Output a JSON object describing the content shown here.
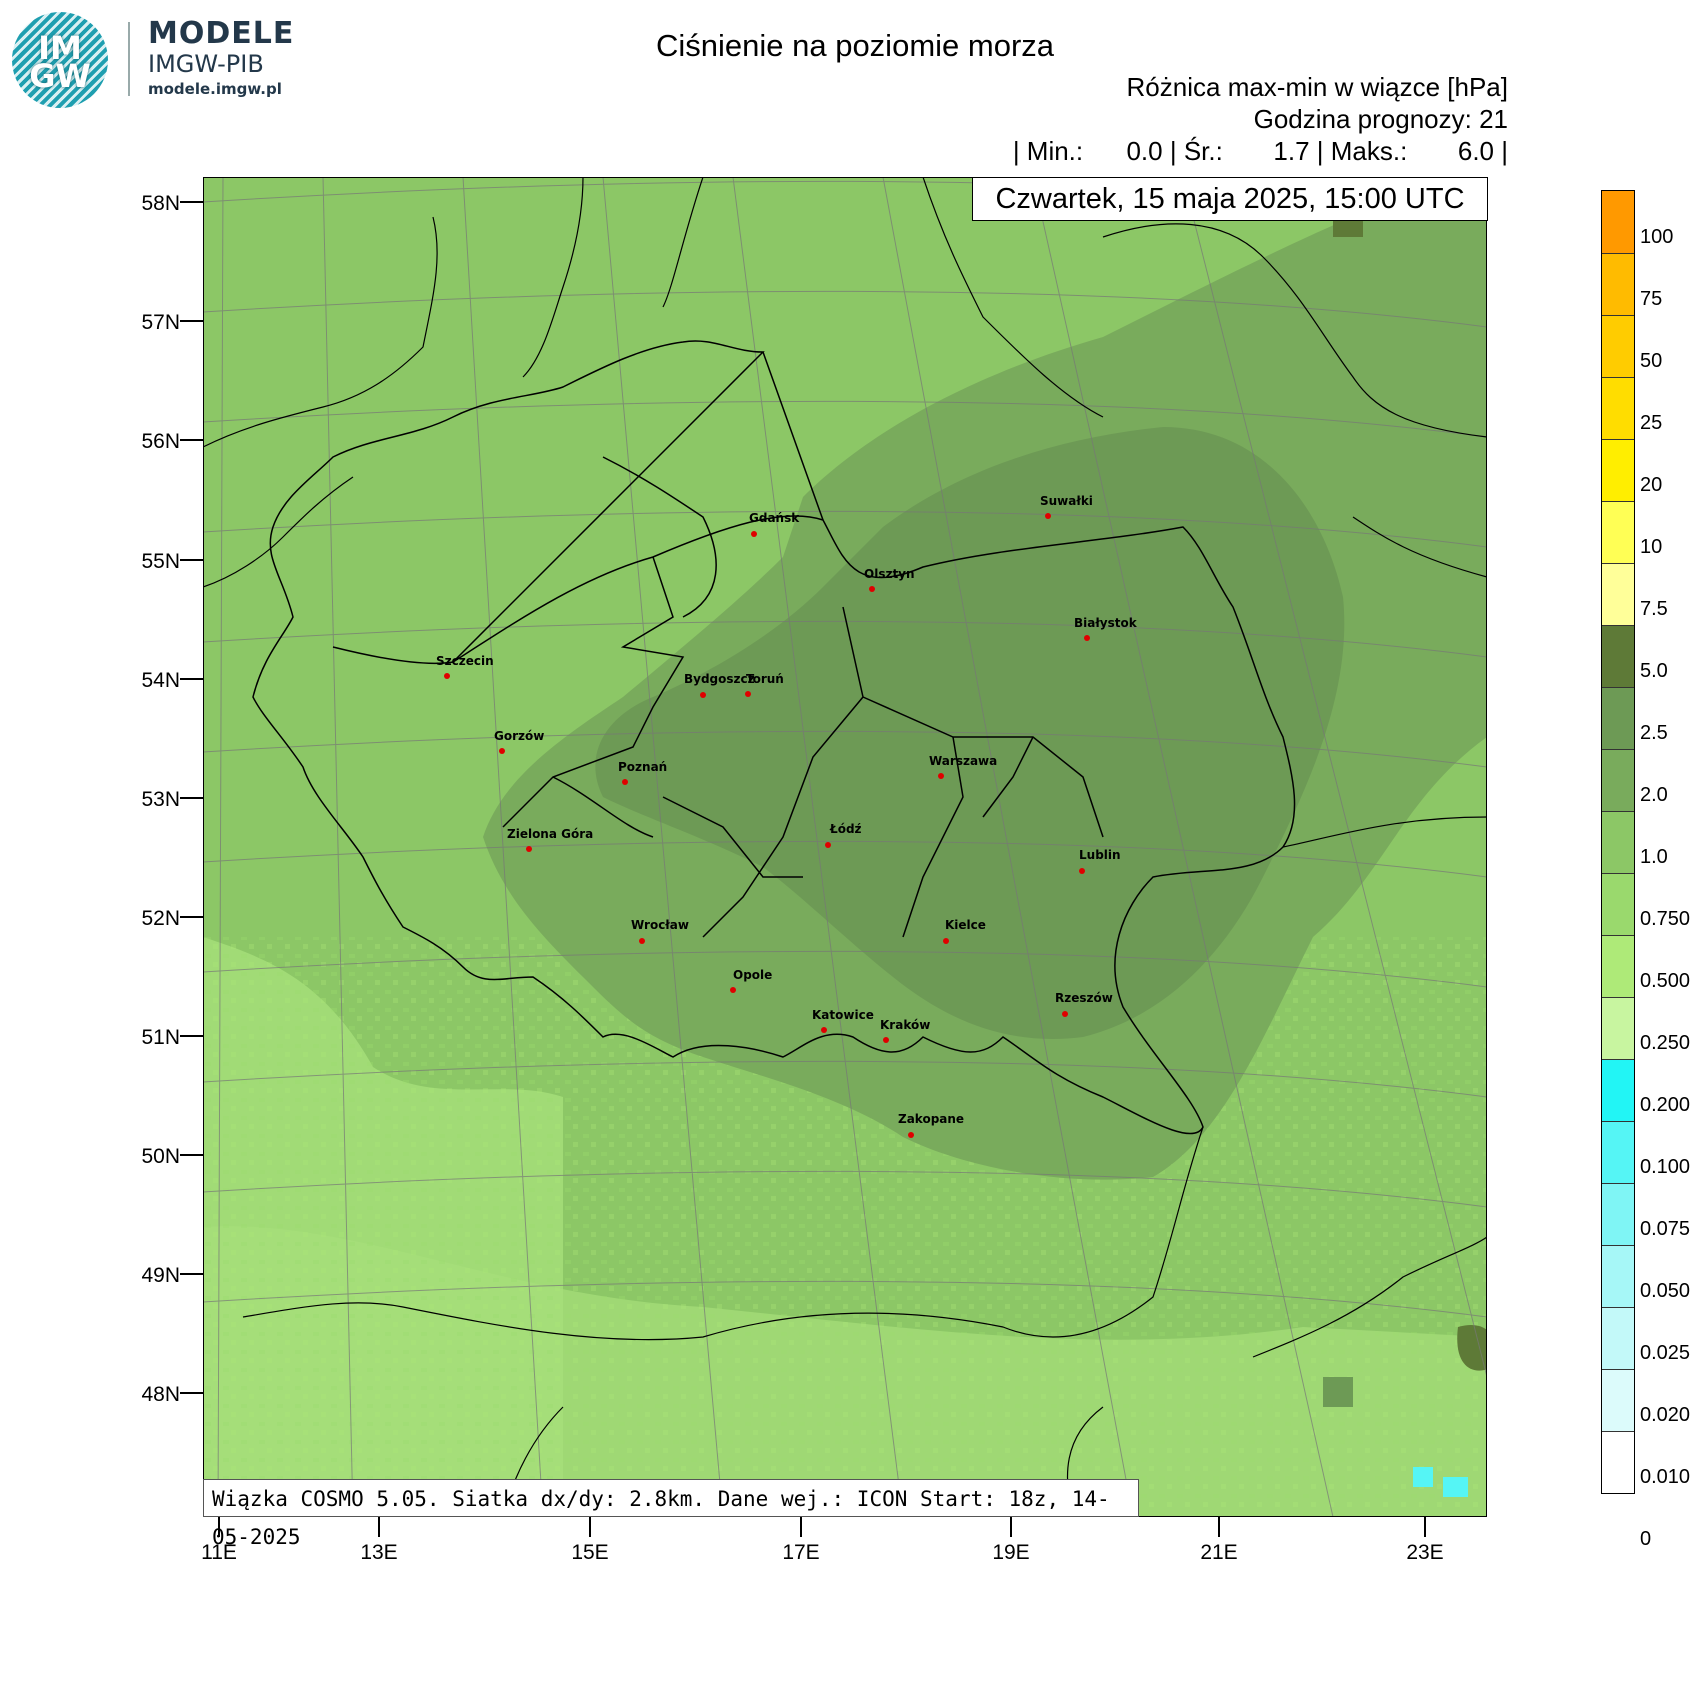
{
  "logo": {
    "text": "IM GW",
    "brand_top": "MODELE",
    "brand_mid": "IMGW-PIB",
    "brand_url": "modele.imgw.pl"
  },
  "title": "Ciśnienie na poziomie morza",
  "subtitle1": "Różnica max-min w wiązce [hPa]",
  "subtitle2": "Godzina prognozy: 21",
  "stats": "| Min.:      0.0 | Śr.:       1.7 | Maks.:       6.0 |",
  "date": "Czwartek, 15 maja 2025, 15:00 UTC",
  "footer": "Wiązka COSMO 5.05. Siatka dx/dy: 2.8km. Dane wej.: ICON Start: 18z, 14-05-2025",
  "lat_labels": [
    "58N",
    "57N",
    "56N",
    "55N",
    "54N",
    "53N",
    "52N",
    "51N",
    "50N",
    "49N",
    "48N"
  ],
  "lon_labels": [
    "11E",
    "13E",
    "15E",
    "17E",
    "19E",
    "21E",
    "23E"
  ],
  "colorbar": {
    "labels": [
      "100",
      "75",
      "50",
      "25",
      "20",
      "10",
      "7.5",
      "5.0",
      "2.5",
      "2.0",
      "1.0",
      "0.750",
      "0.500",
      "0.250",
      "0.200",
      "0.100",
      "0.075",
      "0.050",
      "0.025",
      "0.020",
      "0.010",
      "0"
    ],
    "colors": [
      "#ff9900",
      "#ffbb00",
      "#ffcc00",
      "#ffdd00",
      "#ffee00",
      "#ffff55",
      "#ffff99",
      "#5e7a37",
      "#6d9a55",
      "#79ab5c",
      "#8cc766",
      "#9ad96d",
      "#aeea78",
      "#c8f5a0",
      "#22f5f5",
      "#55f5f5",
      "#7ff5f5",
      "#a6f7f7",
      "#c3f9f9",
      "#dcfbfb",
      "#ffffff"
    ]
  },
  "cities": [
    {
      "name": "Gdańsk"
    },
    {
      "name": "Suwałki"
    },
    {
      "name": "Olsztyn"
    },
    {
      "name": "Białystok"
    },
    {
      "name": "Szczecin"
    },
    {
      "name": "Bydgoszcz"
    },
    {
      "name": "Toruń"
    },
    {
      "name": "Gorzów"
    },
    {
      "name": "Poznań"
    },
    {
      "name": "Warszawa"
    },
    {
      "name": "Łódź"
    },
    {
      "name": "Zielona Góra"
    },
    {
      "name": "Lublin"
    },
    {
      "name": "Wrocław"
    },
    {
      "name": "Kielce"
    },
    {
      "name": "Opole"
    },
    {
      "name": "Rzeszów"
    },
    {
      "name": "Katowice"
    },
    {
      "name": "Kraków"
    },
    {
      "name": "Zakopane"
    }
  ],
  "colors": {
    "field_light": "#8cc766",
    "field_mid": "#79ab5c",
    "field_dark": "#6d9a55",
    "field_darkest": "#5e7a37",
    "city_dot": "#e00000"
  }
}
